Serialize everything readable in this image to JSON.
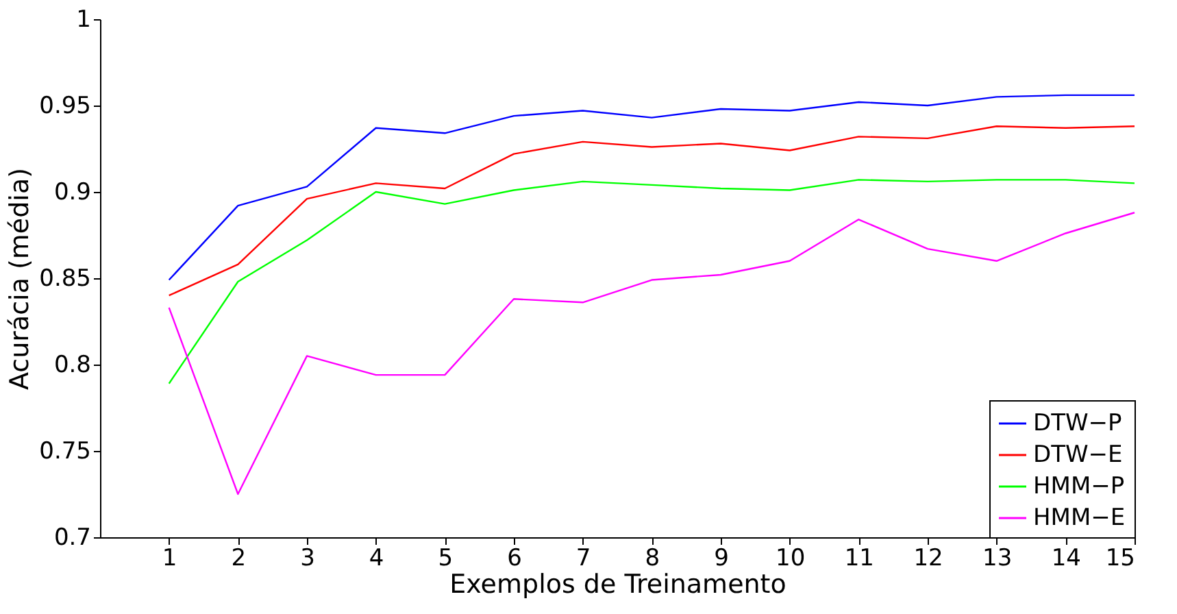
{
  "chart_data": {
    "type": "line",
    "xlabel": "Exemplos de Treinamento",
    "ylabel": "Acurácia (média)",
    "x": [
      1,
      2,
      3,
      4,
      5,
      6,
      7,
      8,
      9,
      10,
      11,
      12,
      13,
      14,
      15
    ],
    "xlim": [
      0,
      15
    ],
    "xticks": [
      1,
      2,
      3,
      4,
      5,
      6,
      7,
      8,
      9,
      10,
      11,
      12,
      13,
      14,
      15
    ],
    "ylim": [
      0.7,
      1
    ],
    "yticks": [
      0.7,
      0.75,
      0.8,
      0.85,
      0.9,
      0.95,
      1
    ],
    "grid": false,
    "legend": "bottom right",
    "marker": "none",
    "line_style": "solid",
    "series": [
      {
        "name": "DTW−P",
        "color": "#0000ff",
        "values": [
          0.849,
          0.892,
          0.903,
          0.937,
          0.934,
          0.944,
          0.947,
          0.943,
          0.948,
          0.947,
          0.952,
          0.95,
          0.955,
          0.956,
          0.956
        ]
      },
      {
        "name": "DTW−E",
        "color": "#ff0000",
        "values": [
          0.84,
          0.858,
          0.896,
          0.905,
          0.902,
          0.922,
          0.929,
          0.926,
          0.928,
          0.924,
          0.932,
          0.931,
          0.938,
          0.937,
          0.938
        ]
      },
      {
        "name": "HMM−P",
        "color": "#00ff00",
        "values": [
          0.789,
          0.848,
          0.872,
          0.9,
          0.893,
          0.901,
          0.906,
          0.904,
          0.902,
          0.901,
          0.907,
          0.906,
          0.907,
          0.907,
          0.905
        ]
      },
      {
        "name": "HMM−E",
        "color": "#ff00ff",
        "values": [
          0.833,
          0.725,
          0.805,
          0.794,
          0.794,
          0.838,
          0.836,
          0.849,
          0.852,
          0.86,
          0.884,
          0.867,
          0.86,
          0.876,
          0.888
        ]
      }
    ]
  }
}
